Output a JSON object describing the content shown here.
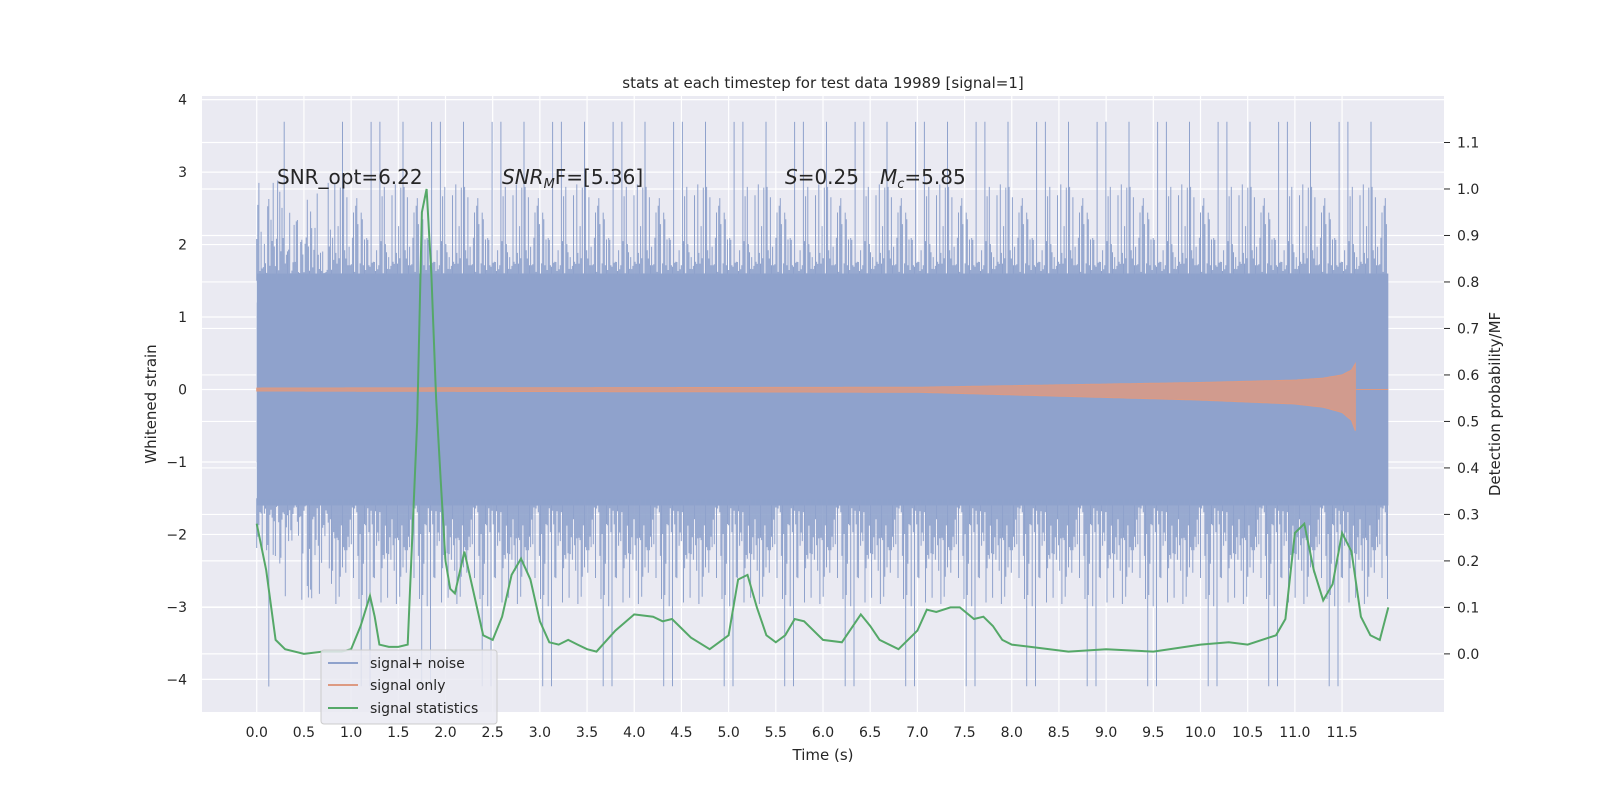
{
  "chart_data": {
    "type": "line",
    "title": "stats at each timestep for test data 19989 [signal=1]",
    "xlabel": "Time (s)",
    "ylabel": "Whitened strain",
    "y2label": "Detection probability/MF",
    "xlim": [
      -0.58,
      12.58
    ],
    "ylim": [
      -4.45,
      4.05
    ],
    "y2lim": [
      -0.125,
      1.2
    ],
    "xticks": [
      0.0,
      0.5,
      1.0,
      1.5,
      2.0,
      2.5,
      3.0,
      3.5,
      4.0,
      4.5,
      5.0,
      5.5,
      6.0,
      6.5,
      7.0,
      7.5,
      8.0,
      8.5,
      9.0,
      9.5,
      10.0,
      10.5,
      11.0,
      11.5
    ],
    "xtick_labels": [
      "0.0",
      "0.5",
      "1.0",
      "1.5",
      "2.0",
      "2.5",
      "3.0",
      "3.5",
      "4.0",
      "4.5",
      "5.0",
      "5.5",
      "6.0",
      "6.5",
      "7.0",
      "7.5",
      "8.0",
      "8.5",
      "9.0",
      "9.5",
      "10.0",
      "10.5",
      "11.0",
      "11.5"
    ],
    "yticks": [
      -4,
      -3,
      -2,
      -1,
      0,
      1,
      2,
      3,
      4
    ],
    "ytick_labels": [
      "−4",
      "−3",
      "−2",
      "−1",
      "0",
      "1",
      "2",
      "3",
      "4"
    ],
    "y2ticks": [
      0.0,
      0.1,
      0.2,
      0.3,
      0.4,
      0.5,
      0.6,
      0.7,
      0.8,
      0.9,
      1.0,
      1.1
    ],
    "y2tick_labels": [
      "0.0",
      "0.1",
      "0.2",
      "0.3",
      "0.4",
      "0.5",
      "0.6",
      "0.7",
      "0.8",
      "0.9",
      "1.0",
      "1.1"
    ],
    "grid": true,
    "legend_position": "lower-left",
    "annotations": {
      "snr_opt": "SNR_opt=6.22",
      "snr_mf_main": "SNR",
      "snr_mf_sub": "M",
      "snr_mf_rest": "F=[5.36]",
      "s_label": "S",
      "s_value": "=0.25",
      "mc_label": "M",
      "mc_sub": "c",
      "mc_value": "=5.85"
    },
    "noise_band": {
      "t_start": 0.0,
      "t_end": 11.99,
      "core_amplitude": 1.6,
      "max_peak": 3.7,
      "min_trough": -4.1
    },
    "signal_envelope": {
      "t": [
        0,
        7.0,
        8.0,
        9.0,
        10.0,
        10.5,
        11.0,
        11.3,
        11.5,
        11.6,
        11.65
      ],
      "amp": [
        0.0,
        0.02,
        0.06,
        0.1,
        0.14,
        0.17,
        0.2,
        0.25,
        0.33,
        0.45,
        0.65
      ]
    },
    "series": [
      {
        "name": "signal+ noise",
        "color": "#8fa2cc"
      },
      {
        "name": "signal only",
        "color": "#dd9a82"
      },
      {
        "name": "signal statistics",
        "color": "#55a868",
        "axis": "right",
        "x": [
          0.0,
          0.1,
          0.2,
          0.3,
          0.5,
          0.7,
          0.9,
          1.0,
          1.1,
          1.2,
          1.25,
          1.3,
          1.4,
          1.5,
          1.6,
          1.7,
          1.75,
          1.8,
          1.85,
          1.9,
          1.95,
          2.0,
          2.05,
          2.1,
          2.2,
          2.3,
          2.4,
          2.5,
          2.6,
          2.7,
          2.8,
          2.9,
          3.0,
          3.1,
          3.2,
          3.3,
          3.4,
          3.5,
          3.6,
          3.8,
          4.0,
          4.2,
          4.3,
          4.4,
          4.6,
          4.8,
          5.0,
          5.1,
          5.2,
          5.3,
          5.4,
          5.5,
          5.6,
          5.7,
          5.8,
          6.0,
          6.2,
          6.4,
          6.5,
          6.6,
          6.8,
          7.0,
          7.1,
          7.2,
          7.35,
          7.45,
          7.6,
          7.7,
          7.8,
          7.9,
          8.0,
          8.2,
          8.6,
          9.0,
          9.5,
          10.0,
          10.3,
          10.5,
          10.8,
          10.9,
          11.0,
          11.1,
          11.2,
          11.3,
          11.4,
          11.5,
          11.6,
          11.7,
          11.8,
          11.9,
          11.99
        ],
        "y": [
          0.28,
          0.18,
          0.03,
          0.01,
          0.0,
          0.005,
          0.005,
          0.01,
          0.06,
          0.125,
          0.08,
          0.02,
          0.015,
          0.015,
          0.02,
          0.5,
          0.95,
          1.0,
          0.82,
          0.55,
          0.37,
          0.2,
          0.14,
          0.13,
          0.22,
          0.13,
          0.04,
          0.03,
          0.08,
          0.17,
          0.205,
          0.16,
          0.07,
          0.025,
          0.02,
          0.03,
          0.02,
          0.01,
          0.005,
          0.05,
          0.085,
          0.08,
          0.07,
          0.075,
          0.035,
          0.01,
          0.04,
          0.16,
          0.17,
          0.1,
          0.04,
          0.025,
          0.04,
          0.075,
          0.07,
          0.03,
          0.025,
          0.085,
          0.06,
          0.03,
          0.01,
          0.05,
          0.095,
          0.09,
          0.1,
          0.1,
          0.075,
          0.08,
          0.06,
          0.03,
          0.02,
          0.015,
          0.005,
          0.01,
          0.005,
          0.02,
          0.025,
          0.02,
          0.04,
          0.075,
          0.26,
          0.28,
          0.18,
          0.115,
          0.15,
          0.26,
          0.22,
          0.08,
          0.04,
          0.03,
          0.1
        ]
      }
    ]
  }
}
